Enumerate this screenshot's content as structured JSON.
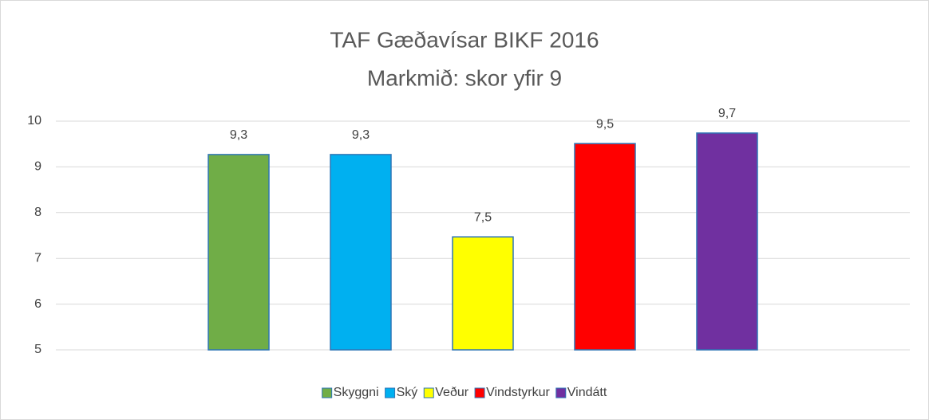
{
  "chart_data": {
    "type": "bar",
    "title": "TAF Gæðavísar BIKF 2016",
    "subtitle": "Markmið: skor yfir 9",
    "categories": [
      null
    ],
    "series": [
      {
        "name": "Skyggni",
        "color": "#70ad47",
        "values": [
          9.27
        ],
        "value_labels": [
          "9,3"
        ]
      },
      {
        "name": "Ský",
        "color": "#00b0f0",
        "values": [
          9.27
        ],
        "value_labels": [
          "9,3"
        ]
      },
      {
        "name": "Veður",
        "color": "#ffff00",
        "values": [
          7.47
        ],
        "value_labels": [
          "7,5"
        ]
      },
      {
        "name": "Vindstyrkur",
        "color": "#ff0000",
        "values": [
          9.51
        ],
        "value_labels": [
          "9,5"
        ]
      },
      {
        "name": "Vindátt",
        "color": "#7030a0",
        "values": [
          9.74
        ],
        "value_labels": [
          "9,7"
        ]
      }
    ],
    "ylim": [
      5,
      10
    ],
    "yticks": [
      5,
      6,
      7,
      8,
      9,
      10
    ],
    "grid": true,
    "legend": "bottom"
  }
}
